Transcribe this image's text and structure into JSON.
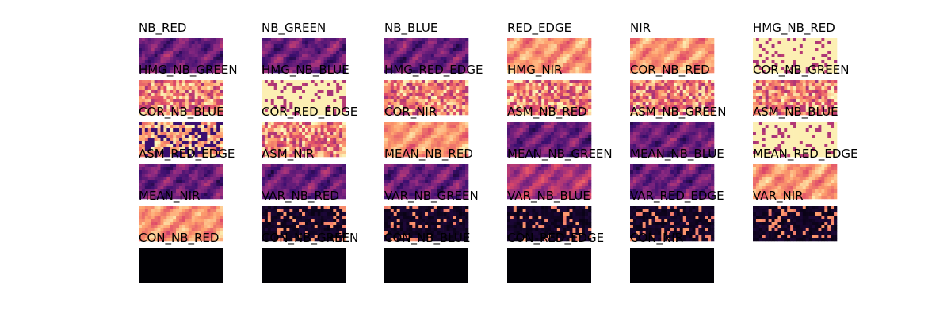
{
  "panels": [
    {
      "title": "NB_RED"
    },
    {
      "title": "NB_GREEN"
    },
    {
      "title": "NB_BLUE"
    },
    {
      "title": "RED_EDGE"
    },
    {
      "title": "NIR"
    },
    {
      "title": "HMG_NB_RED"
    },
    {
      "title": "HMG_NB_GREEN"
    },
    {
      "title": "HMG_NB_BLUE"
    },
    {
      "title": "HMG_RED_EDGE"
    },
    {
      "title": "HMG_NIR"
    },
    {
      "title": "COR_NB_RED"
    },
    {
      "title": "COR_NB_GREEN"
    },
    {
      "title": "COR_NB_BLUE"
    },
    {
      "title": "COR_RED_EDGE"
    },
    {
      "title": "COR_NIR"
    },
    {
      "title": "ASM_NB_RED"
    },
    {
      "title": "ASM_NB_GREEN"
    },
    {
      "title": "ASM_NB_BLUE"
    },
    {
      "title": "ASM_RED_EDGE"
    },
    {
      "title": "ASM_NIR"
    },
    {
      "title": "MEAN_NB_RED"
    },
    {
      "title": "MEAN_NB_GREEN"
    },
    {
      "title": "MEAN_NB_BLUE"
    },
    {
      "title": "MEAN_RED_EDGE"
    },
    {
      "title": "MEAN_NIR"
    },
    {
      "title": "VAR_NB_RED"
    },
    {
      "title": "VAR_NB_GREEN"
    },
    {
      "title": "VAR_NB_BLUE"
    },
    {
      "title": "VAR_RED_EDGE"
    },
    {
      "title": "VAR_NIR"
    },
    {
      "title": "CON_NB_RED"
    },
    {
      "title": "CON_NB_GREEN"
    },
    {
      "title": "CON_NB_BLUE"
    },
    {
      "title": "CON_RED_EDGE"
    },
    {
      "title": "CON_NIR"
    }
  ]
}
